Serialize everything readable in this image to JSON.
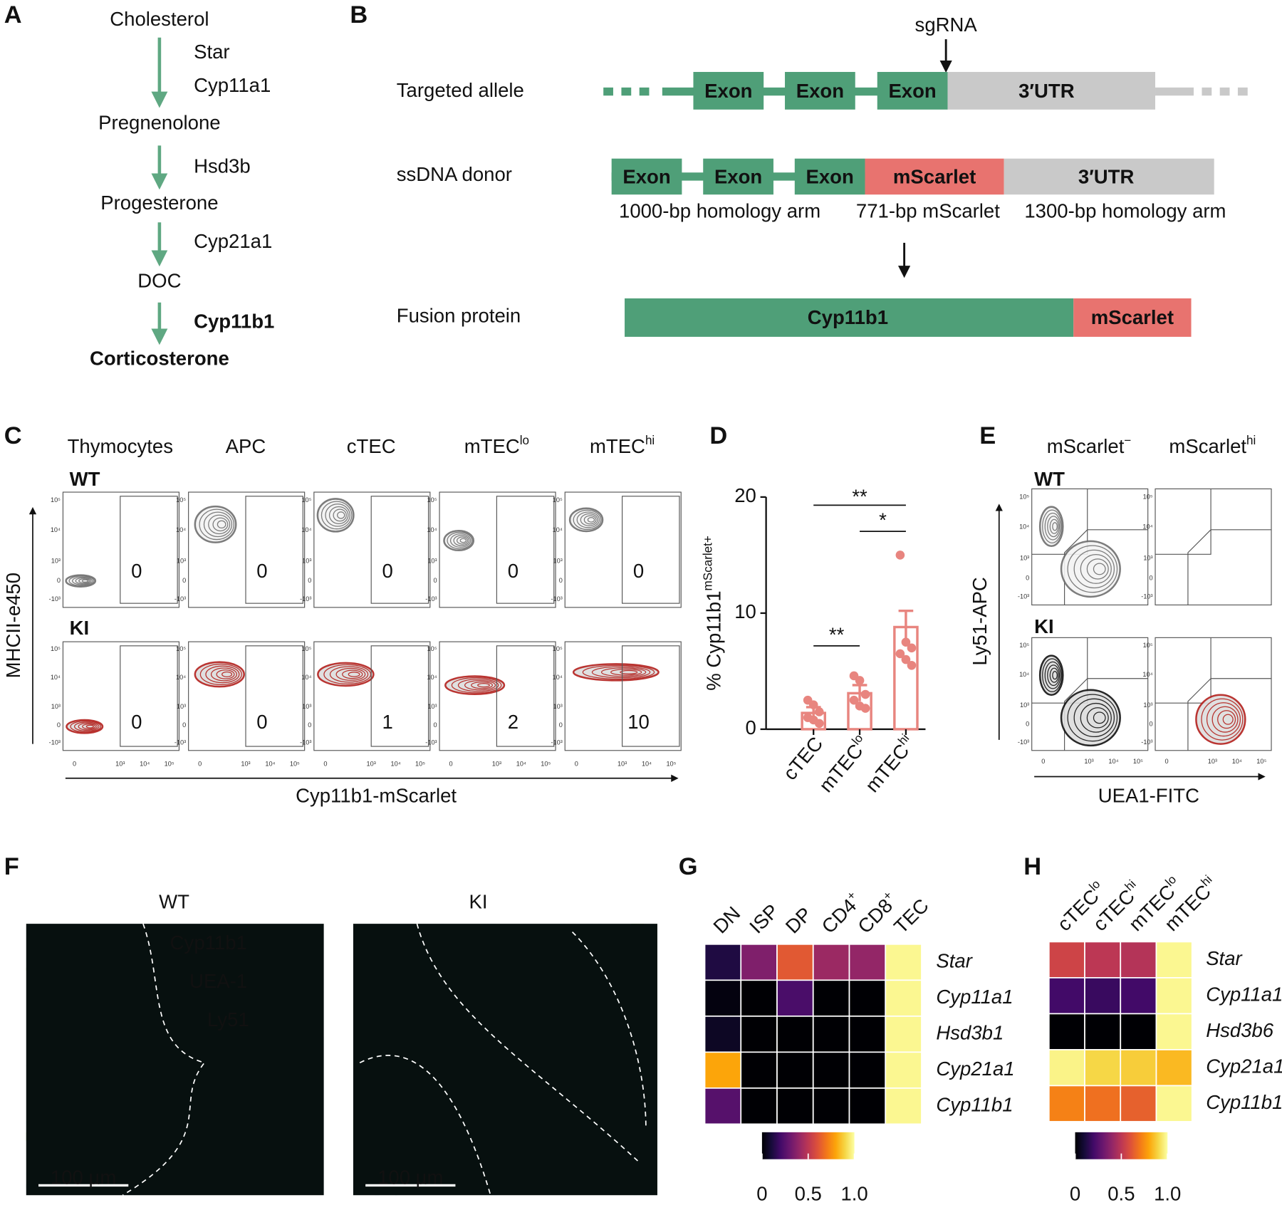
{
  "panel_labels": [
    "A",
    "B",
    "C",
    "D",
    "E",
    "F",
    "G",
    "H"
  ],
  "pathway": {
    "steps": [
      {
        "name": "Cholesterol"
      },
      {
        "name": "Pregnenolone"
      },
      {
        "name": "Progesterone"
      },
      {
        "name": "DOC"
      },
      {
        "name": "Corticosterone",
        "bold": true
      }
    ],
    "enzymes": [
      {
        "name": "Star"
      },
      {
        "name": "Cyp11a1"
      },
      {
        "name": "Hsd3b"
      },
      {
        "name": "Cyp21a1"
      },
      {
        "name": "Cyp11b1",
        "color": "#4f9f78"
      }
    ],
    "arrow_color": "#5fa882"
  },
  "construct": {
    "sgrna": "sgRNA",
    "rows": [
      "Targeted allele",
      "ssDNA donor",
      "Fusion protein"
    ],
    "exon": "Exon",
    "utr": "3′UTR",
    "insert": "mScarlet",
    "arms": [
      "1000-bp homology arm",
      "771-bp mScarlet",
      "1300-bp homology arm"
    ],
    "fusion": [
      "Cyp11b1",
      "mScarlet"
    ],
    "colors": {
      "exon": "#4f9f78",
      "insert": "#e8736f",
      "utr": "#c9c9c9"
    }
  },
  "flow_c": {
    "columns": [
      {
        "name": "Thymocytes"
      },
      {
        "name": "APC"
      },
      {
        "name": "cTEC"
      },
      {
        "name": "mTEC",
        "sup": "lo"
      },
      {
        "name": "mTEC",
        "sup": "hi"
      }
    ],
    "rows": [
      {
        "name": "WT",
        "color": "#6e6e6e",
        "gate_values": [
          0,
          0,
          0,
          0,
          0
        ]
      },
      {
        "name": "KI",
        "color": "#b3201c",
        "gate_values": [
          0,
          0,
          1,
          2,
          10
        ]
      }
    ],
    "ylabel": "MHCII-e450",
    "xlabel": "Cyp11b1-mScarlet",
    "yticks": [
      "10⁵",
      "10⁴",
      "10³",
      "0",
      "-10³"
    ],
    "xticks": [
      "0",
      "10³",
      "10⁴",
      "10⁵"
    ]
  },
  "chart_data": {
    "type": "bar",
    "ylabel": {
      "name": "% Cyp11b1",
      "sup": "mScarlet+"
    },
    "categories": [
      {
        "name": "cTEC"
      },
      {
        "name": "mTEC",
        "sup": "lo"
      },
      {
        "name": "mTEC",
        "sup": "hi"
      }
    ],
    "values": [
      1.4,
      3.1,
      8.8
    ],
    "errors": [
      0.5,
      0.7,
      1.4
    ],
    "points": [
      [
        2.5,
        2.1,
        1.5,
        1.0,
        0.8,
        0.5
      ],
      [
        4.6,
        4.2,
        3.0,
        2.5,
        2.0,
        1.8
      ],
      [
        15.0,
        7.5,
        7.0,
        6.5,
        6.0,
        5.5
      ]
    ],
    "color": "#e8857f",
    "ylim": [
      0,
      20
    ],
    "yticks": [
      0,
      10,
      20
    ],
    "significance": [
      "**",
      "*",
      "**"
    ]
  },
  "flow_e": {
    "columns": [
      {
        "name": "mScarlet",
        "sup": "−"
      },
      {
        "name": "mScarlet",
        "sup": "hi"
      }
    ],
    "rows": [
      {
        "name": "WT",
        "color": "#6e6e6e"
      },
      {
        "name": "KI",
        "color": "#b3201c"
      }
    ],
    "ylabel": "Ly51-APC",
    "xlabel": "UEA1-FITC"
  },
  "images": {
    "titles": [
      "WT",
      "KI"
    ],
    "channels": [
      {
        "name": "Cyp11b1",
        "color": "#e8302a"
      },
      {
        "name": "UEA-1",
        "color": "#9fd63a"
      },
      {
        "name": "Ly51",
        "color": "#8fd3f0"
      }
    ],
    "scale_bar": "100 µm"
  },
  "heatmap_g": {
    "columns": [
      {
        "name": "DN"
      },
      {
        "name": "ISP"
      },
      {
        "name": "DP"
      },
      {
        "name": "CD4",
        "sup": "+"
      },
      {
        "name": "CD8",
        "sup": "+"
      },
      {
        "name": "TEC"
      }
    ],
    "rows": [
      "Star",
      "Cyp11a1",
      "Hsd3b1",
      "Cyp21a1",
      "Cyp11b1"
    ],
    "values": [
      [
        0.12,
        0.35,
        0.62,
        0.42,
        0.4,
        0.98
      ],
      [
        0.02,
        0,
        0.22,
        0,
        0,
        0.98
      ],
      [
        0.06,
        0,
        0,
        0,
        0,
        0.98
      ],
      [
        0.8,
        0,
        0,
        0,
        0,
        0.98
      ],
      [
        0.25,
        0,
        0,
        0,
        0,
        0.98
      ]
    ],
    "colormap": "inferno",
    "cbar_ticks": [
      0,
      0.5,
      {
        "value": 1,
        "label": "1.0"
      }
    ]
  },
  "heatmap_h": {
    "columns": [
      {
        "name": "cTEC",
        "sup": "lo"
      },
      {
        "name": "cTEC",
        "sup": "hi"
      },
      {
        "name": "mTEC",
        "sup": "lo"
      },
      {
        "name": "mTEC",
        "sup": "hi"
      }
    ],
    "rows": [
      "Star",
      "Cyp11a1",
      "Hsd3b6",
      "Cyp21a1",
      "Cyp11b1"
    ],
    "values": [
      [
        0.55,
        0.5,
        0.48,
        0.98
      ],
      [
        0.2,
        0.18,
        0.2,
        0.98
      ],
      [
        0,
        0,
        0,
        0.98
      ],
      [
        0.97,
        0.9,
        0.88,
        0.84
      ],
      [
        0.72,
        0.68,
        0.64,
        0.98
      ]
    ],
    "colormap": "inferno",
    "cbar_ticks": [
      0,
      0.5,
      {
        "value": 1,
        "label": "1.0"
      }
    ]
  }
}
